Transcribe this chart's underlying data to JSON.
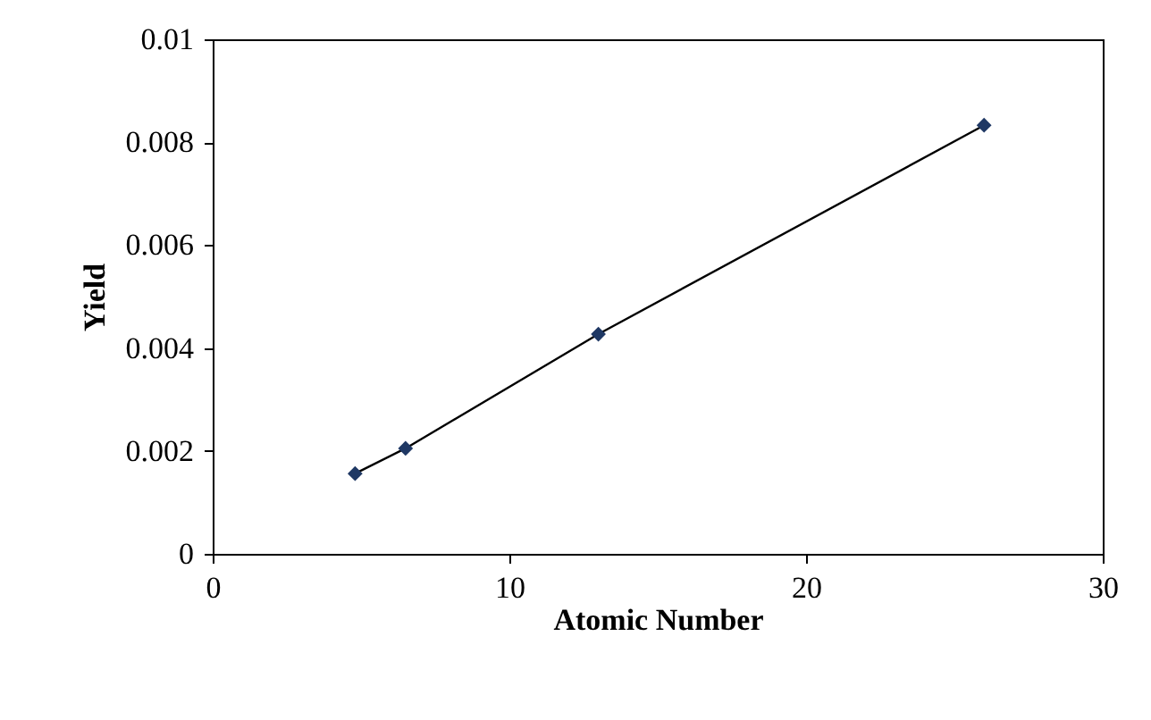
{
  "chart_data": {
    "type": "line",
    "xlabel": "Atomic Number",
    "ylabel": "Yield",
    "x": [
      4.8,
      6.5,
      13,
      26
    ],
    "series": [
      {
        "color": "#1f3864",
        "values": [
          0.00156,
          0.00205,
          0.00427,
          0.00833
        ]
      }
    ],
    "xlim": [
      0,
      30
    ],
    "xticks": [
      0,
      10,
      20,
      30
    ],
    "ylim": [
      0,
      0.01
    ],
    "yticks": [
      0,
      0.002,
      0.004,
      0.006,
      0.008,
      0.01
    ],
    "grid": false,
    "legend": false,
    "marker": "diamond",
    "line_style": "solid"
  }
}
